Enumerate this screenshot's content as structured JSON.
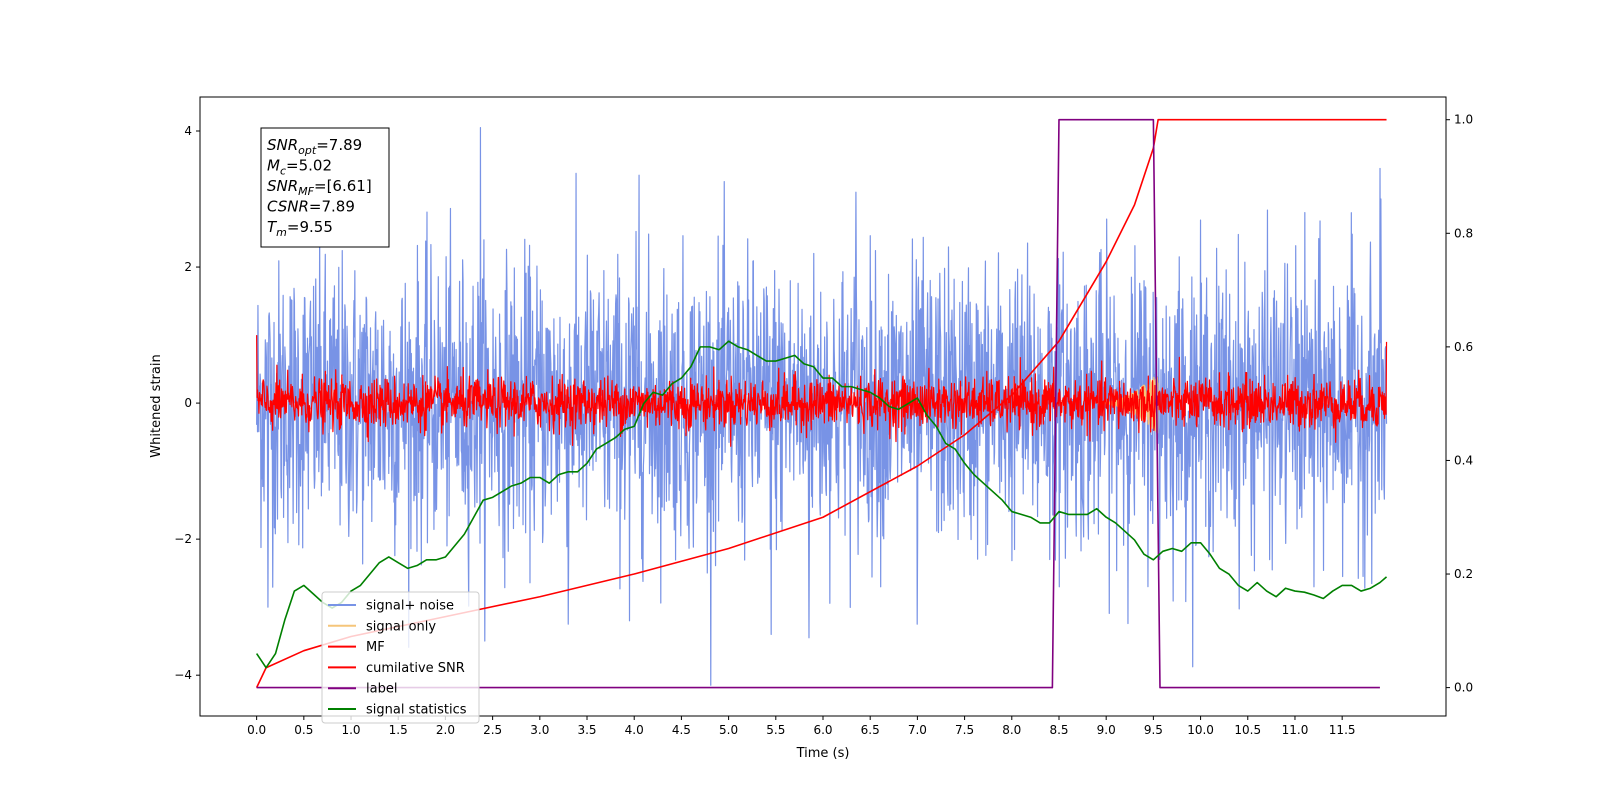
{
  "chart_data": {
    "type": "line",
    "xlabel": "Time (s)",
    "ylabel": "Whitened strain",
    "xlim": [
      -0.6,
      12.6
    ],
    "ylim": [
      -4.6,
      4.5
    ],
    "y2lim": [
      -0.05,
      1.04
    ],
    "x_ticks": [
      0.0,
      0.5,
      1.0,
      1.5,
      2.0,
      2.5,
      3.0,
      3.5,
      4.0,
      4.5,
      5.0,
      5.5,
      6.0,
      6.5,
      7.0,
      7.5,
      8.0,
      8.5,
      9.0,
      9.5,
      10.0,
      10.5,
      11.0,
      11.5
    ],
    "x_tick_labels": [
      "0.0",
      "0.5",
      "1.0",
      "1.5",
      "2.0",
      "2.5",
      "3.0",
      "3.5",
      "4.0",
      "4.5",
      "5.0",
      "5.5",
      "6.0",
      "6.5",
      "7.0",
      "7.5",
      "8.0",
      "8.5",
      "9.0",
      "9.5",
      "10.0",
      "10.5",
      "11.0",
      "11.5"
    ],
    "y_ticks": [
      -4,
      -2,
      0,
      2,
      4
    ],
    "y_tick_labels": [
      "−4",
      "−2",
      "0",
      "2",
      "4"
    ],
    "y2_ticks": [
      0.0,
      0.2,
      0.4,
      0.6,
      0.8,
      1.0
    ],
    "y2_tick_labels": [
      "0.0",
      "0.2",
      "0.4",
      "0.6",
      "0.8",
      "1.0"
    ],
    "annotation": [
      {
        "base": "SNR",
        "sub": "opt",
        "value": "=7.89"
      },
      {
        "base": "M",
        "sub": "c",
        "value": "=5.02"
      },
      {
        "base": "SNR",
        "sub": "MF",
        "value": "=[6.61]"
      },
      {
        "base": "CSNR",
        "sub": "",
        "value": "=7.89"
      },
      {
        "base": "T",
        "sub": "m",
        "value": "=9.55"
      }
    ],
    "legend_placement": "lower-left",
    "series": [
      {
        "name": "signal+ noise",
        "axis": "left",
        "color": "#7893e6",
        "kind": "noise",
        "x_range": [
          0.0,
          11.97
        ],
        "envelope_typical": [
          -1.7,
          1.6
        ],
        "peaks": [
          {
            "x": 2.37,
            "y": 4.05
          },
          {
            "x": 4.05,
            "y": 3.35
          },
          {
            "x": 6.35,
            "y": 3.1
          },
          {
            "x": 11.9,
            "y": 3.45
          },
          {
            "x": 3.95,
            "y": -3.2
          },
          {
            "x": 5.45,
            "y": -3.4
          },
          {
            "x": 5.85,
            "y": -3.45
          },
          {
            "x": 7.0,
            "y": -3.25
          },
          {
            "x": 0.12,
            "y": -3.0
          },
          {
            "x": 3.3,
            "y": -3.25
          },
          {
            "x": 8.4,
            "y": -2.3
          },
          {
            "x": 11.2,
            "y": -2.7
          }
        ]
      },
      {
        "name": "signal only",
        "axis": "left",
        "color": "#f5c57a",
        "kind": "chirp",
        "x_range": [
          8.9,
          9.55
        ],
        "amplitude": [
          0.0,
          0.45
        ]
      },
      {
        "name": "MF",
        "axis": "left",
        "color": "#ff0000",
        "kind": "noise",
        "x_range": [
          0.0,
          11.97
        ],
        "envelope_typical": [
          -0.25,
          0.35
        ],
        "start_value": 1.0,
        "end_value": 0.9
      },
      {
        "name": "cumilative SNR",
        "axis": "right",
        "color": "#ff0000",
        "kind": "curve",
        "x": [
          0.0,
          0.1,
          0.5,
          1.0,
          2.0,
          3.0,
          4.0,
          5.0,
          6.0,
          7.0,
          7.5,
          8.0,
          8.5,
          9.0,
          9.3,
          9.5,
          9.55,
          11.97
        ],
        "y": [
          0.0,
          0.035,
          0.065,
          0.09,
          0.125,
          0.16,
          0.2,
          0.245,
          0.3,
          0.39,
          0.445,
          0.515,
          0.61,
          0.75,
          0.85,
          0.95,
          1.0,
          1.0
        ]
      },
      {
        "name": "label",
        "axis": "right",
        "color": "#800080",
        "kind": "curve",
        "x": [
          0.0,
          8.43,
          8.5,
          9.5,
          9.57,
          11.9
        ],
        "y": [
          0.0,
          0.0,
          1.0,
          1.0,
          0.0,
          0.0
        ]
      },
      {
        "name": "signal statistics",
        "axis": "right",
        "color": "#008000",
        "kind": "curve",
        "x": [
          0.0,
          0.1,
          0.2,
          0.3,
          0.4,
          0.5,
          0.6,
          0.7,
          0.8,
          0.9,
          1.0,
          1.1,
          1.2,
          1.3,
          1.4,
          1.5,
          1.6,
          1.7,
          1.8,
          1.9,
          2.0,
          2.1,
          2.2,
          2.3,
          2.4,
          2.5,
          2.6,
          2.7,
          2.8,
          2.9,
          3.0,
          3.1,
          3.2,
          3.3,
          3.4,
          3.5,
          3.6,
          3.7,
          3.8,
          3.9,
          4.0,
          4.1,
          4.2,
          4.3,
          4.4,
          4.5,
          4.6,
          4.7,
          4.8,
          4.9,
          5.0,
          5.1,
          5.2,
          5.3,
          5.4,
          5.5,
          5.6,
          5.7,
          5.8,
          5.9,
          6.0,
          6.1,
          6.2,
          6.3,
          6.4,
          6.5,
          6.6,
          6.7,
          6.8,
          6.9,
          7.0,
          7.1,
          7.2,
          7.3,
          7.4,
          7.5,
          7.6,
          7.7,
          7.8,
          7.9,
          8.0,
          8.1,
          8.2,
          8.3,
          8.4,
          8.5,
          8.6,
          8.7,
          8.8,
          8.9,
          9.0,
          9.1,
          9.2,
          9.3,
          9.4,
          9.5,
          9.6,
          9.7,
          9.8,
          9.9,
          10.0,
          10.1,
          10.2,
          10.3,
          10.4,
          10.5,
          10.6,
          10.7,
          10.8,
          10.9,
          11.0,
          11.1,
          11.2,
          11.3,
          11.4,
          11.5,
          11.6,
          11.7,
          11.8,
          11.9,
          11.97
        ],
        "y": [
          0.06,
          0.035,
          0.06,
          0.12,
          0.17,
          0.18,
          0.165,
          0.15,
          0.14,
          0.15,
          0.17,
          0.18,
          0.2,
          0.22,
          0.23,
          0.22,
          0.21,
          0.215,
          0.225,
          0.225,
          0.23,
          0.25,
          0.27,
          0.3,
          0.33,
          0.335,
          0.345,
          0.355,
          0.36,
          0.37,
          0.37,
          0.36,
          0.375,
          0.38,
          0.38,
          0.395,
          0.42,
          0.43,
          0.44,
          0.455,
          0.46,
          0.5,
          0.52,
          0.515,
          0.535,
          0.545,
          0.565,
          0.6,
          0.6,
          0.595,
          0.61,
          0.6,
          0.595,
          0.585,
          0.575,
          0.575,
          0.58,
          0.585,
          0.57,
          0.565,
          0.545,
          0.545,
          0.53,
          0.53,
          0.525,
          0.52,
          0.51,
          0.495,
          0.49,
          0.5,
          0.51,
          0.48,
          0.46,
          0.43,
          0.42,
          0.395,
          0.375,
          0.36,
          0.345,
          0.33,
          0.31,
          0.305,
          0.3,
          0.29,
          0.29,
          0.31,
          0.305,
          0.305,
          0.305,
          0.315,
          0.3,
          0.29,
          0.275,
          0.26,
          0.235,
          0.225,
          0.24,
          0.245,
          0.24,
          0.255,
          0.255,
          0.235,
          0.21,
          0.2,
          0.18,
          0.17,
          0.185,
          0.17,
          0.16,
          0.175,
          0.17,
          0.168,
          0.163,
          0.157,
          0.17,
          0.18,
          0.18,
          0.17,
          0.175,
          0.185,
          0.195
        ]
      }
    ]
  }
}
